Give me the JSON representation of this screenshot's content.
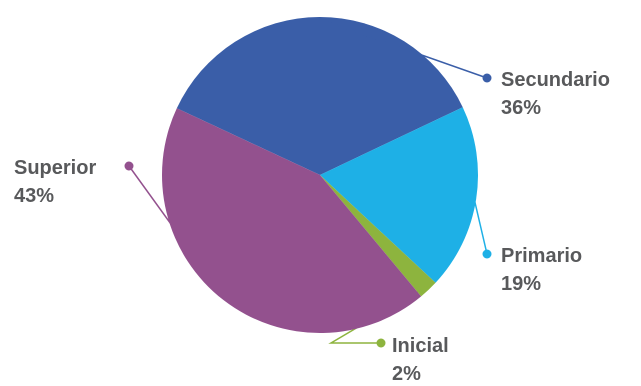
{
  "chart_data": {
    "type": "pie",
    "title": "",
    "slices": [
      {
        "label": "Secundario",
        "value": 36,
        "display": "36%",
        "color": "#3a5ea8"
      },
      {
        "label": "Primario",
        "value": 19,
        "display": "19%",
        "color": "#1eb0e6"
      },
      {
        "label": "Inicial",
        "value": 2,
        "display": "2%",
        "color": "#8db43e"
      },
      {
        "label": "Superior",
        "value": 43,
        "display": "43%",
        "color": "#93518e"
      }
    ]
  }
}
